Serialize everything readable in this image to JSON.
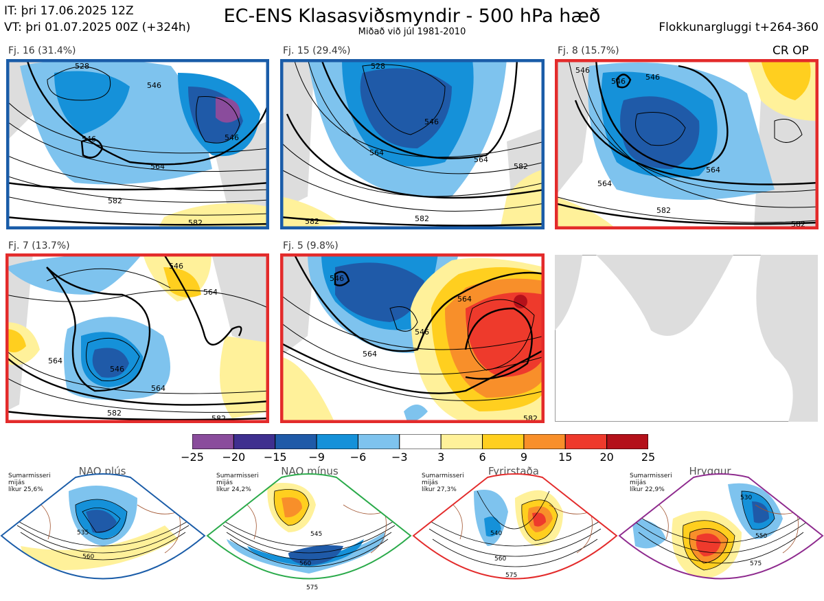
{
  "header": {
    "issue_time": "IT: þri 17.06.2025 12Z",
    "valid_time": "VT: þri 01.07.2025 00Z  (+324h)",
    "title": "EC-ENS Klasasviðsmyndir - 500 hPa hæð",
    "subtitle": "Miðað við júl 1981-2010",
    "window": "Flokkunargluggi t+264-360"
  },
  "panels": [
    {
      "label": "Fj. 16 (31.4%)",
      "frame_color": "#1a5ca8",
      "contours": [
        "546",
        "528",
        "546",
        "546",
        "564",
        "582",
        "582"
      ]
    },
    {
      "label": "Fj. 15 (29.4%)",
      "frame_color": "#1a5ca8",
      "contours": [
        "528",
        "546",
        "564",
        "564",
        "582",
        "582",
        "582"
      ]
    },
    {
      "label": "Fj. 8 (15.7%)",
      "frame_color": "#e32b2b",
      "contours": [
        "546",
        "546",
        "546",
        "564",
        "564",
        "582",
        "582"
      ],
      "tag": "CR OP"
    },
    {
      "label": "Fj. 7 (13.7%)",
      "frame_color": "#e32b2b",
      "contours": [
        "546",
        "564",
        "546",
        "564",
        "564",
        "582",
        "582"
      ]
    },
    {
      "label": "Fj. 5 (9.8%)",
      "frame_color": "#e32b2b",
      "contours": [
        "546",
        "546",
        "564",
        "564",
        "582"
      ]
    }
  ],
  "colorbar": {
    "ticks": [
      "−25",
      "−20",
      "−15",
      "−9",
      "−6",
      "−3",
      "3",
      "6",
      "9",
      "15",
      "20",
      "25"
    ],
    "colors": [
      "#8a4c9c",
      "#3f2f8f",
      "#1f5aa8",
      "#1591d9",
      "#7ec3ee",
      "#ffffff",
      "#fff19a",
      "#ffcf1f",
      "#f88f2a",
      "#ee3a2c",
      "#b4111a"
    ]
  },
  "regimes": [
    {
      "name": "NAO plús",
      "note_lines": [
        "Sumarmisseri",
        "mijás",
        "líkur 25,6%"
      ],
      "dot_color": "#1a5ca8",
      "frame_color": "#1a5ca8",
      "contours": [
        "535",
        "560"
      ]
    },
    {
      "name": "NAO mínus",
      "note_lines": [
        "Sumarmisseri",
        "mijás",
        "líkur 24,2%"
      ],
      "dot_color": "#2aaa4a",
      "frame_color": "#2aaa4a",
      "contours": [
        "545",
        "560",
        "575"
      ]
    },
    {
      "name": "Fyrirstaða",
      "note_lines": [
        "Sumarmisseri",
        "mijás",
        "líkur 27,3%"
      ],
      "dot_color": "#e32b2b",
      "frame_color": "#e32b2b",
      "contours": [
        "540",
        "560",
        "575"
      ]
    },
    {
      "name": "Hryggur",
      "note_lines": [
        "Sumarmisseri",
        "mijás",
        "líkur 22,9%"
      ],
      "dot_color": "#ee82ee",
      "frame_color": "#8e2a8e",
      "contours": [
        "530",
        "550",
        "575"
      ]
    }
  ]
}
